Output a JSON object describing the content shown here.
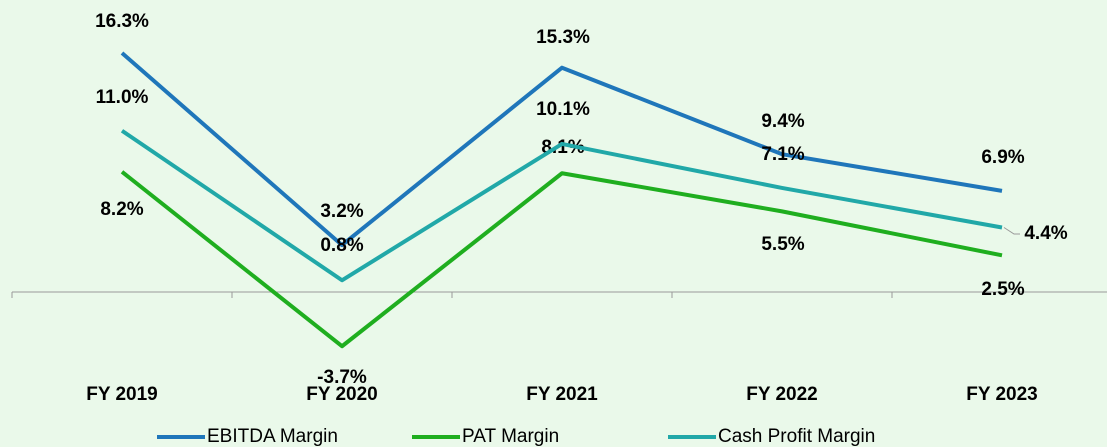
{
  "chart_data": {
    "type": "line",
    "categories": [
      "FY 2019",
      "FY 2020",
      "FY 2021",
      "FY 2022",
      "FY 2023"
    ],
    "series": [
      {
        "name": "EBITDA Margin",
        "color": "#1f76ba",
        "values": [
          16.3,
          3.2,
          15.3,
          9.4,
          6.9
        ],
        "value_labels": [
          "16.3%",
          "3.2%",
          "15.3%",
          "9.4%",
          "6.9%"
        ]
      },
      {
        "name": "PAT Margin",
        "color": "#1fae1f",
        "values": [
          8.2,
          -3.7,
          8.1,
          5.5,
          2.5
        ],
        "value_labels": [
          "8.2%",
          "-3.7%",
          "8.1%",
          "5.5%",
          "2.5%"
        ]
      },
      {
        "name": "Cash Profit Margin",
        "color": "#21a8a8",
        "values": [
          11.0,
          0.8,
          10.1,
          7.1,
          4.4
        ],
        "value_labels": [
          "11.0%",
          "0.8%",
          "10.1%",
          "7.1%",
          "4.4%"
        ]
      }
    ],
    "ylim": [
      -6,
      19
    ]
  }
}
